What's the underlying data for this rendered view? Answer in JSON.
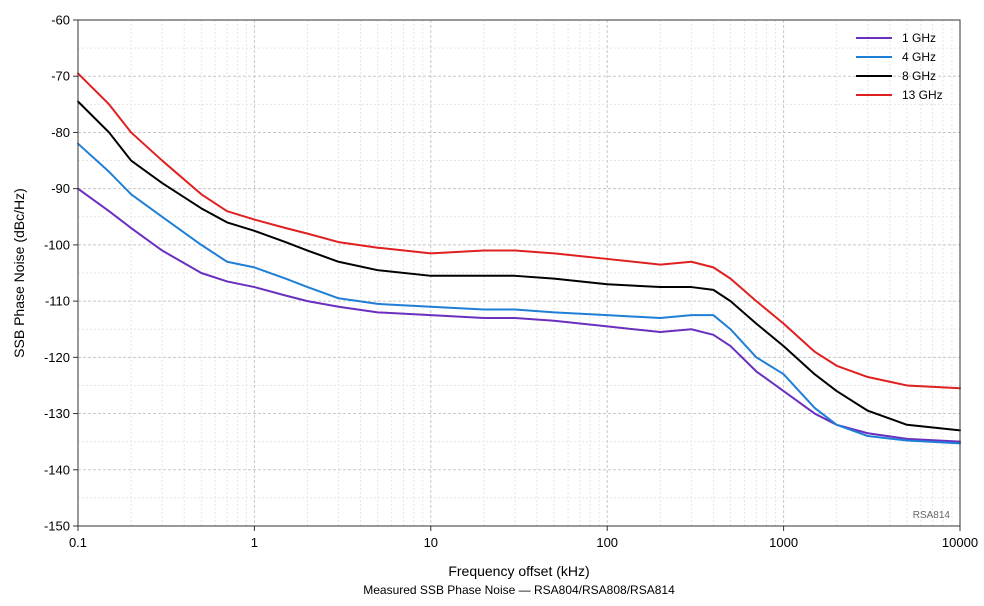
{
  "chart_data": {
    "type": "line",
    "title": "",
    "xlabel": "Frequency offset (kHz)",
    "ylabel": "SSB Phase Noise (dBc/Hz)",
    "caption": "Measured SSB Phase Noise — RSA804/RSA808/RSA814",
    "watermark": "RSA814",
    "x_scale": "log",
    "xlim": [
      0.1,
      10000
    ],
    "ylim": [
      -150,
      -60
    ],
    "x_ticks": [
      0.1,
      1,
      10,
      100,
      1000,
      10000
    ],
    "x_tick_labels": [
      "0.1",
      "1",
      "10",
      "100",
      "1000",
      "10000"
    ],
    "y_ticks": [
      -60,
      -70,
      -80,
      -90,
      -100,
      -110,
      -120,
      -130,
      -140,
      -150
    ],
    "y_tick_labels": [
      "-60",
      "-70",
      "-80",
      "-90",
      "-100",
      "-110",
      "-120",
      "-130",
      "-140",
      "-150"
    ],
    "grid": true,
    "legend_position": "top-right",
    "series": [
      {
        "name": "1 GHz",
        "color": "#6a2fbf",
        "x": [
          0.1,
          0.15,
          0.2,
          0.3,
          0.5,
          0.7,
          1,
          1.5,
          2,
          3,
          5,
          10,
          20,
          30,
          50,
          100,
          200,
          300,
          400,
          500,
          700,
          1000,
          1500,
          2000,
          3000,
          5000,
          10000
        ],
        "y": [
          -90,
          -94,
          -97,
          -101,
          -105,
          -106.5,
          -107.5,
          -109,
          -110,
          -111,
          -112,
          -112.5,
          -113,
          -113,
          -113.5,
          -114.5,
          -115.5,
          -115,
          -116,
          -118,
          -122.5,
          -126,
          -130,
          -132,
          -133.5,
          -134.5,
          -135
        ]
      },
      {
        "name": "4 GHz",
        "color": "#1f7fd6",
        "x": [
          0.1,
          0.15,
          0.2,
          0.3,
          0.5,
          0.7,
          1,
          1.5,
          2,
          3,
          5,
          10,
          20,
          30,
          50,
          100,
          200,
          300,
          400,
          500,
          700,
          1000,
          1500,
          2000,
          3000,
          5000,
          10000
        ],
        "y": [
          -82,
          -87,
          -91,
          -95,
          -100,
          -103,
          -104,
          -106,
          -107.5,
          -109.5,
          -110.5,
          -111,
          -111.5,
          -111.5,
          -112,
          -112.5,
          -113,
          -112.5,
          -112.5,
          -115,
          -120,
          -123,
          -129,
          -132,
          -134,
          -134.8,
          -135.3
        ]
      },
      {
        "name": "8 GHz",
        "color": "#000000",
        "x": [
          0.1,
          0.15,
          0.2,
          0.3,
          0.5,
          0.7,
          1,
          1.5,
          2,
          3,
          5,
          10,
          20,
          30,
          50,
          100,
          200,
          300,
          400,
          500,
          700,
          1000,
          1500,
          2000,
          3000,
          5000,
          10000
        ],
        "y": [
          -74.5,
          -80,
          -85,
          -89,
          -93.5,
          -96,
          -97.5,
          -99.5,
          -101,
          -103,
          -104.5,
          -105.5,
          -105.5,
          -105.5,
          -106,
          -107,
          -107.5,
          -107.5,
          -108,
          -110,
          -114,
          -118,
          -123,
          -126,
          -129.5,
          -132,
          -133
        ]
      },
      {
        "name": "13 GHz",
        "color": "#e02020",
        "x": [
          0.1,
          0.15,
          0.2,
          0.3,
          0.5,
          0.7,
          1,
          1.5,
          2,
          3,
          5,
          10,
          20,
          30,
          50,
          100,
          200,
          300,
          400,
          500,
          700,
          1000,
          1500,
          2000,
          3000,
          5000,
          10000
        ],
        "y": [
          -69.5,
          -75,
          -80,
          -85,
          -91,
          -94,
          -95.5,
          -97,
          -98,
          -99.5,
          -100.5,
          -101.5,
          -101,
          -101,
          -101.5,
          -102.5,
          -103.5,
          -103,
          -104,
          -106,
          -110,
          -114,
          -119,
          -121.5,
          -123.5,
          -125,
          -125.5
        ]
      }
    ]
  }
}
